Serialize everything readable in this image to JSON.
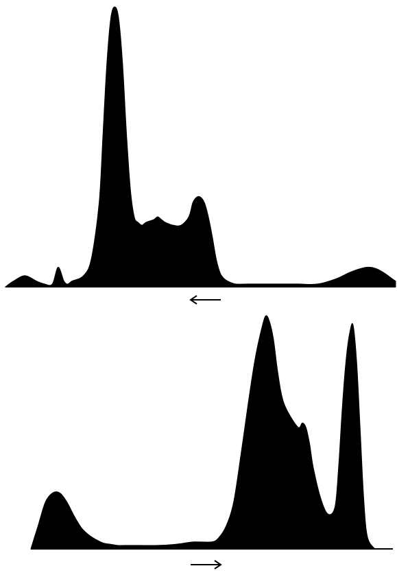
{
  "chart_data": [
    {
      "type": "area",
      "title": "",
      "xlabel": "",
      "ylabel": "",
      "xlim": [
        0,
        100
      ],
      "ylim": [
        0,
        100
      ],
      "grid": false,
      "legend": "none",
      "direction_indicator": "left-arrow",
      "fill_color": "#000000",
      "series": [
        {
          "x": [
            0,
            2,
            5,
            8,
            10,
            12,
            13.5,
            15,
            16,
            17,
            20,
            22,
            24,
            25,
            26,
            27,
            28,
            29,
            30,
            31,
            32,
            33,
            34,
            35,
            36,
            38,
            39,
            40,
            41,
            43,
            45,
            47,
            48,
            49,
            50,
            51,
            52,
            53,
            54,
            55,
            56,
            57,
            59,
            62,
            65,
            70,
            75,
            80,
            85,
            88,
            91,
            93,
            95,
            97,
            99,
            100
          ],
          "y": [
            0,
            2,
            4,
            2,
            1,
            1,
            7,
            2,
            1,
            2,
            4,
            10,
            30,
            55,
            80,
            96,
            100,
            96,
            80,
            55,
            35,
            25,
            23,
            22,
            23,
            24,
            25,
            24,
            23,
            22,
            22,
            25,
            30,
            32,
            32,
            30,
            25,
            18,
            10,
            5,
            3,
            2,
            1,
            1,
            1,
            1,
            1,
            1,
            3,
            5,
            6.5,
            7,
            6.5,
            5,
            3,
            2
          ]
        }
      ]
    },
    {
      "type": "area",
      "title": "",
      "xlabel": "",
      "ylabel": "",
      "xlim": [
        0,
        100
      ],
      "ylim": [
        0,
        100
      ],
      "grid": false,
      "legend": "none",
      "direction_indicator": "right-arrow",
      "fill_color": "#000000",
      "series": [
        {
          "x": [
            0,
            2,
            4,
            6,
            8,
            10,
            12,
            14,
            16,
            18,
            20,
            22,
            24,
            26,
            30,
            35,
            40,
            45,
            50,
            52,
            54,
            56,
            58,
            60,
            62,
            64,
            65,
            66,
            67,
            68,
            69,
            70,
            72,
            74,
            75,
            76,
            77,
            78,
            80,
            82,
            84,
            85,
            86,
            87,
            88,
            89,
            90,
            91,
            92,
            93,
            95
          ],
          "y": [
            0,
            10,
            20,
            24,
            24,
            20,
            14,
            9,
            6,
            4,
            2.5,
            2,
            1.5,
            1.5,
            1.5,
            1.5,
            2,
            3,
            3,
            5,
            10,
            20,
            40,
            62,
            82,
            96,
            100,
            97,
            90,
            78,
            68,
            62,
            56,
            52,
            54,
            52,
            45,
            35,
            22,
            15,
            18,
            35,
            60,
            80,
            92,
            96,
            80,
            50,
            20,
            5,
            0
          ]
        }
      ]
    }
  ]
}
